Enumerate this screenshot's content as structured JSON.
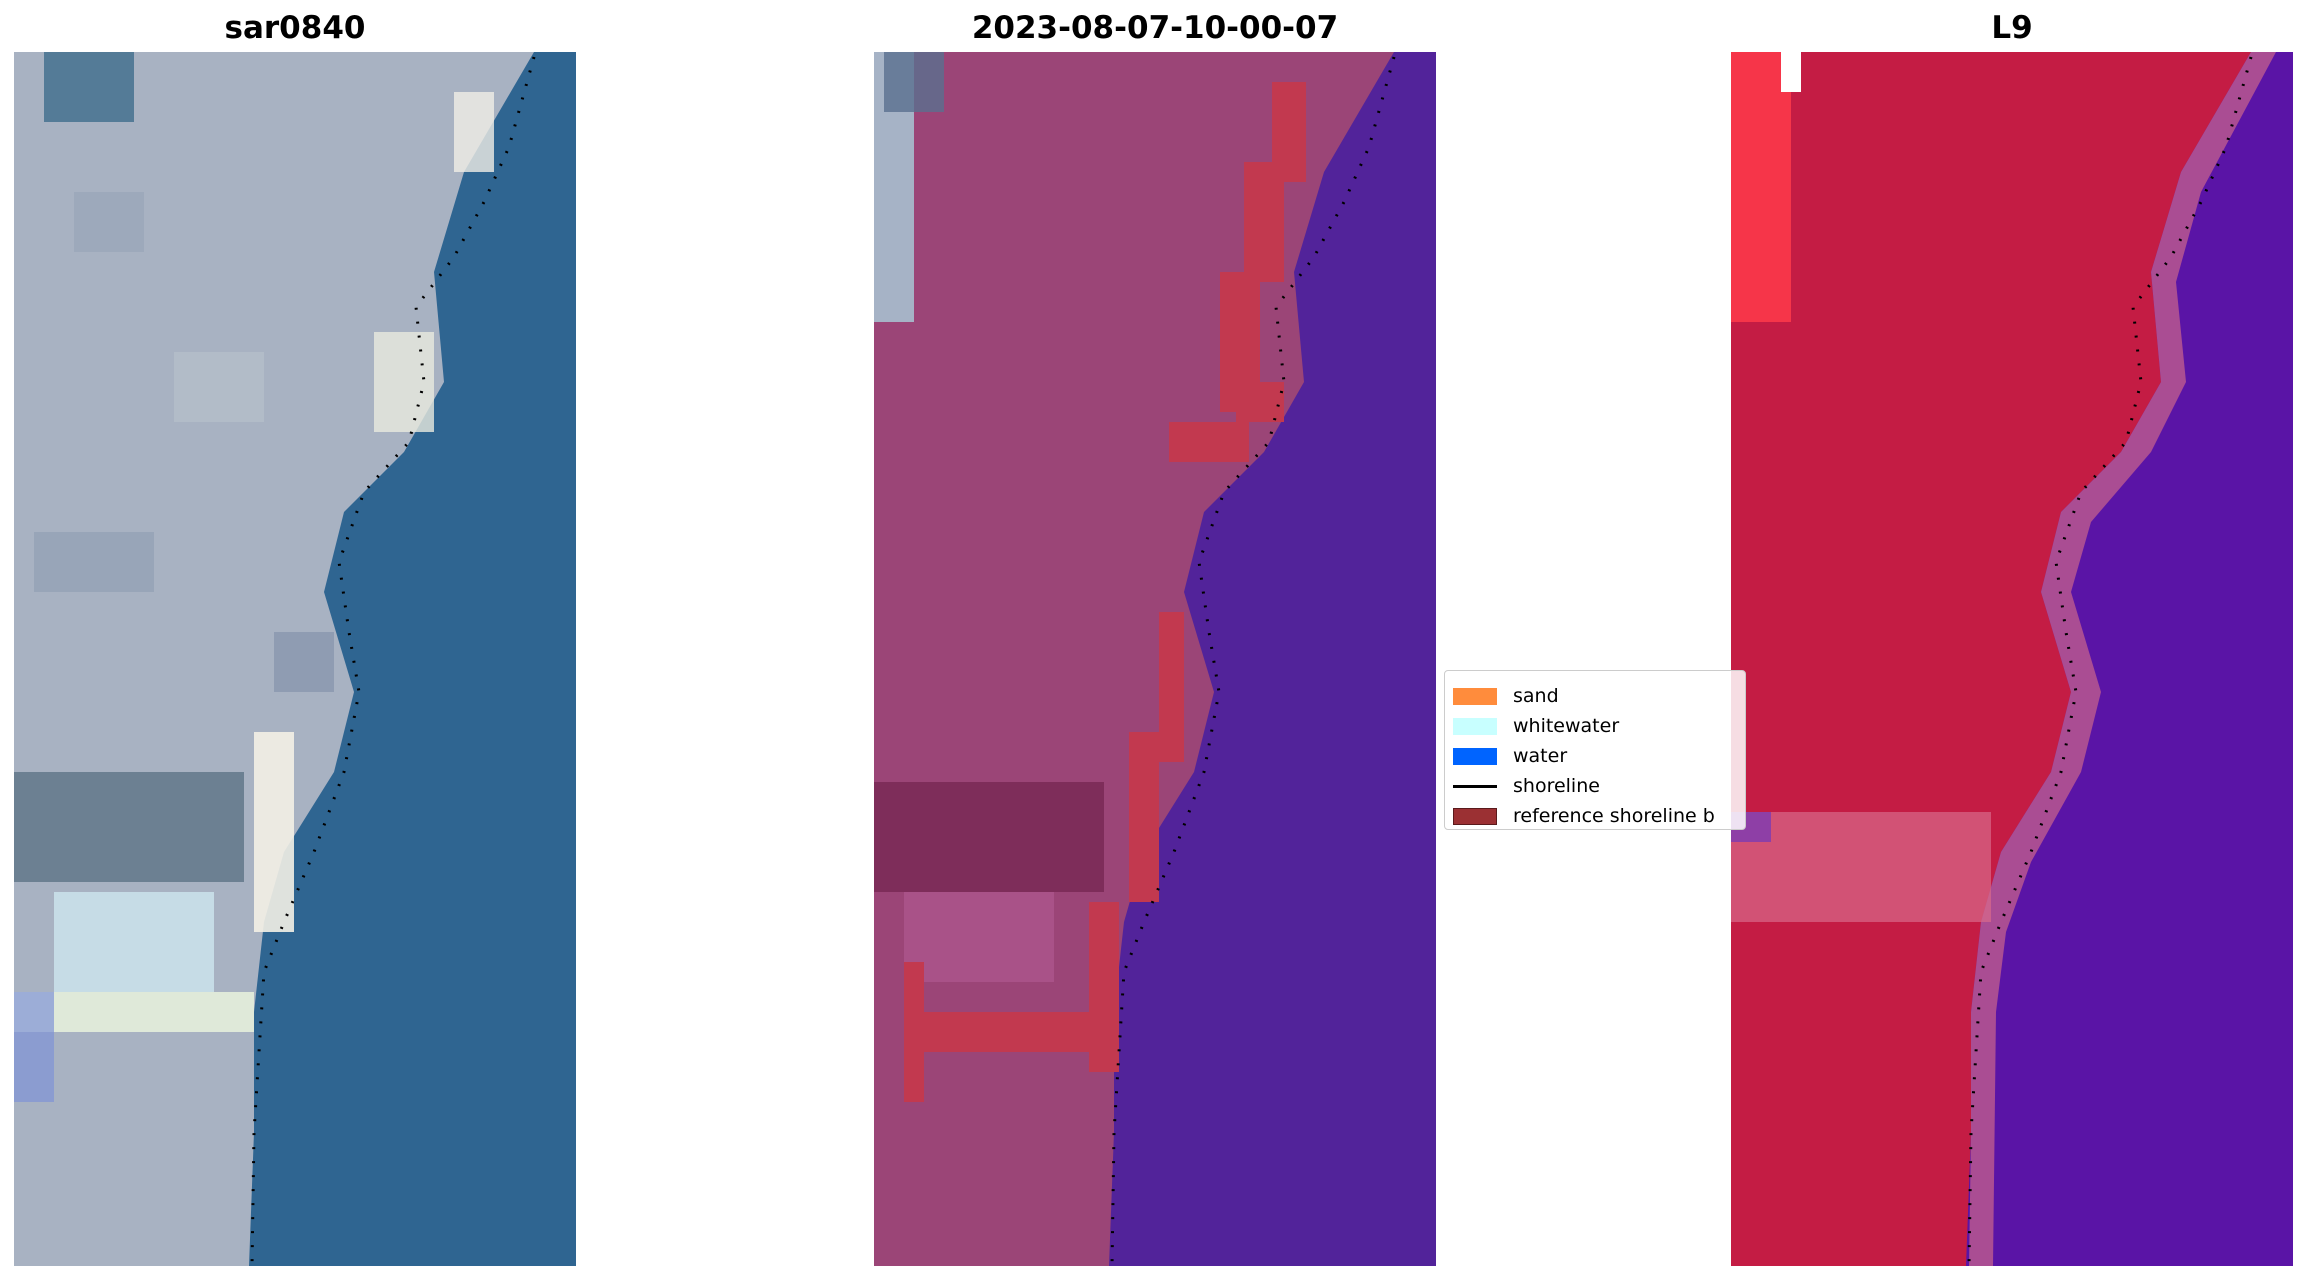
{
  "panels": [
    {
      "title": "sar0840"
    },
    {
      "title": "2023-08-07-10-00-07"
    },
    {
      "title": "L9"
    }
  ],
  "legend": {
    "items": [
      {
        "label": "sand",
        "color": "#ff8c3c",
        "kind": "patch"
      },
      {
        "label": "whitewater",
        "color": "#c8ffff",
        "kind": "patch"
      },
      {
        "label": "water",
        "color": "#0064ff",
        "kind": "patch"
      },
      {
        "label": "shoreline",
        "color": "#000000",
        "kind": "line"
      },
      {
        "label": "reference shoreline b",
        "color": "#9b3033",
        "kind": "patch"
      }
    ]
  },
  "colors": {
    "rgb_water": "#2f6591",
    "rgb_land": "#a8b2c2",
    "class_land": "#9b4577",
    "class_water": "#52239a",
    "class_buffer": "#c2394f",
    "nir_land": "#c41c44",
    "nir_water": "#5a14a6",
    "shoreline": "#000000"
  }
}
